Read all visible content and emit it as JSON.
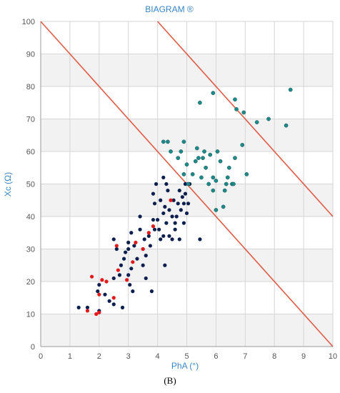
{
  "panel_label": "(B)",
  "chart_data": {
    "type": "scatter",
    "title": "BIAGRAM ®",
    "xlabel": "PhA (°)",
    "ylabel": "Xc (Ω)",
    "xlim": [
      0,
      10
    ],
    "ylim": [
      0,
      100
    ],
    "xticks": [
      "0",
      "1",
      "2",
      "3",
      "4",
      "5",
      "6",
      "7",
      "8",
      "9",
      "10"
    ],
    "yticks": [
      "0",
      "10",
      "20",
      "30",
      "40",
      "50",
      "60",
      "70",
      "80",
      "90",
      "100"
    ],
    "grid": true,
    "colors": {
      "navy": "#0d1f4f",
      "red": "#e31a1c",
      "teal": "#1f8a8a",
      "line": "#e05a46",
      "title": "#3a86c8"
    },
    "reference_lines": [
      {
        "x": [
          0,
          10
        ],
        "y": [
          100,
          0
        ]
      },
      {
        "x": [
          4,
          10
        ],
        "y": [
          100,
          40
        ]
      }
    ],
    "series": [
      {
        "color_key": "navy",
        "points": [
          [
            1.3,
            12
          ],
          [
            1.6,
            12
          ],
          [
            2.0,
            11
          ],
          [
            2.2,
            16
          ],
          [
            1.95,
            17
          ],
          [
            2.0,
            19
          ],
          [
            2.35,
            14
          ],
          [
            2.5,
            13
          ],
          [
            2.8,
            12
          ],
          [
            2.5,
            21
          ],
          [
            2.7,
            22
          ],
          [
            2.75,
            25
          ],
          [
            2.85,
            27
          ],
          [
            2.9,
            29
          ],
          [
            2.5,
            33
          ],
          [
            2.6,
            30
          ],
          [
            3.0,
            22
          ],
          [
            3.05,
            19
          ],
          [
            3.15,
            17
          ],
          [
            3.1,
            24
          ],
          [
            3.3,
            27
          ],
          [
            3.5,
            25
          ],
          [
            3.6,
            21
          ],
          [
            3.8,
            17
          ],
          [
            3.0,
            30
          ],
          [
            3.0,
            32
          ],
          [
            3.1,
            35
          ],
          [
            3.2,
            31
          ],
          [
            3.4,
            36
          ],
          [
            3.4,
            40
          ],
          [
            3.5,
            30
          ],
          [
            3.6,
            28
          ],
          [
            3.55,
            33
          ],
          [
            3.7,
            34
          ],
          [
            3.75,
            31
          ],
          [
            3.85,
            39
          ],
          [
            3.9,
            36
          ],
          [
            3.85,
            47
          ],
          [
            3.95,
            50
          ],
          [
            3.9,
            44
          ],
          [
            4.0,
            39
          ],
          [
            4.05,
            36
          ],
          [
            4.1,
            33
          ],
          [
            4.2,
            34
          ],
          [
            4.1,
            45
          ],
          [
            4.2,
            41
          ],
          [
            4.25,
            43
          ],
          [
            4.3,
            50
          ],
          [
            4.35,
            48
          ],
          [
            4.4,
            42
          ],
          [
            4.5,
            40
          ],
          [
            4.6,
            38
          ],
          [
            4.55,
            45
          ],
          [
            4.65,
            40
          ],
          [
            4.7,
            44
          ],
          [
            4.75,
            48
          ],
          [
            4.8,
            42
          ],
          [
            4.85,
            46
          ],
          [
            4.9,
            44
          ],
          [
            4.95,
            47
          ],
          [
            5.0,
            41
          ],
          [
            5.05,
            44
          ],
          [
            5.1,
            50
          ],
          [
            4.95,
            50
          ],
          [
            4.9,
            38
          ],
          [
            4.75,
            33
          ],
          [
            4.5,
            33
          ],
          [
            4.6,
            36
          ],
          [
            4.4,
            34
          ],
          [
            4.3,
            38
          ],
          [
            4.2,
            52
          ],
          [
            5.45,
            33
          ],
          [
            4.25,
            25
          ]
        ]
      },
      {
        "color_key": "red",
        "points": [
          [
            1.6,
            11
          ],
          [
            1.75,
            21.5
          ],
          [
            1.9,
            10
          ],
          [
            2.0,
            10.5
          ],
          [
            2.0,
            16
          ],
          [
            2.1,
            20.5
          ],
          [
            2.25,
            20
          ],
          [
            2.5,
            15
          ],
          [
            2.6,
            31
          ],
          [
            2.65,
            23.5
          ],
          [
            2.95,
            20.5
          ],
          [
            3.15,
            26
          ],
          [
            3.25,
            32
          ],
          [
            3.5,
            30
          ],
          [
            3.7,
            35
          ],
          [
            3.85,
            37
          ],
          [
            4.45,
            45
          ]
        ]
      },
      {
        "color_key": "teal",
        "points": [
          [
            4.2,
            63
          ],
          [
            4.35,
            63
          ],
          [
            4.45,
            60
          ],
          [
            4.7,
            58
          ],
          [
            4.8,
            60
          ],
          [
            4.9,
            53
          ],
          [
            4.9,
            63
          ],
          [
            5.0,
            56
          ],
          [
            5.05,
            50
          ],
          [
            5.2,
            53
          ],
          [
            5.3,
            57
          ],
          [
            5.35,
            61
          ],
          [
            5.4,
            58
          ],
          [
            5.45,
            75
          ],
          [
            5.5,
            52
          ],
          [
            5.55,
            58
          ],
          [
            5.6,
            60
          ],
          [
            5.65,
            55
          ],
          [
            5.75,
            50
          ],
          [
            5.8,
            59
          ],
          [
            5.9,
            48
          ],
          [
            5.9,
            52
          ],
          [
            5.9,
            78
          ],
          [
            6.0,
            42
          ],
          [
            6.0,
            51
          ],
          [
            6.05,
            60
          ],
          [
            6.15,
            57
          ],
          [
            6.25,
            43
          ],
          [
            6.3,
            48
          ],
          [
            6.35,
            50
          ],
          [
            6.4,
            52
          ],
          [
            6.45,
            55
          ],
          [
            6.55,
            50
          ],
          [
            6.6,
            50
          ],
          [
            6.65,
            58
          ],
          [
            6.65,
            76
          ],
          [
            6.7,
            73
          ],
          [
            6.9,
            62
          ],
          [
            6.95,
            72
          ],
          [
            7.05,
            53
          ],
          [
            7.4,
            69
          ],
          [
            7.8,
            70
          ],
          [
            8.4,
            68
          ],
          [
            8.55,
            79
          ]
        ]
      }
    ]
  }
}
